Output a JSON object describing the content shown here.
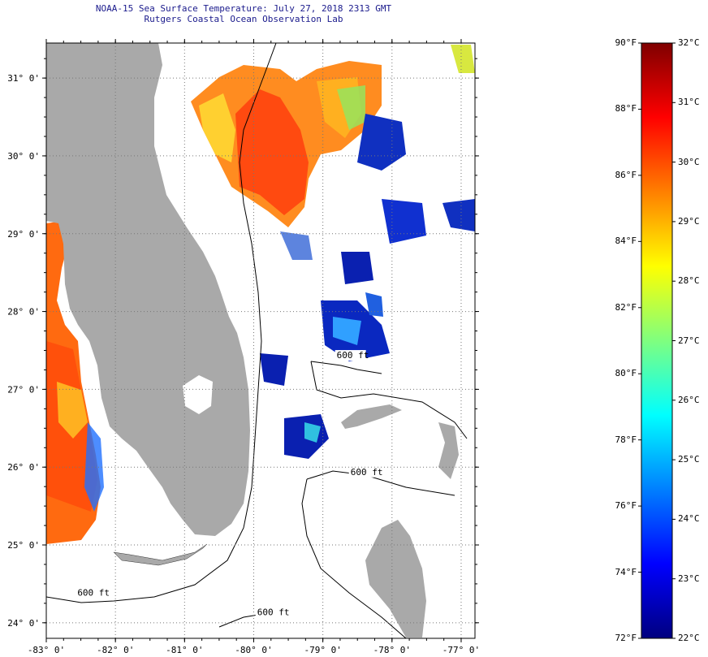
{
  "header": {
    "title": "NOAA-15 Sea Surface Temperature:  July 27, 2018 2313 GMT",
    "subtitle": "Rutgers Coastal Ocean Observation Lab"
  },
  "map": {
    "lon_range": [
      -83,
      -76.8
    ],
    "lat_range": [
      23.8,
      31.45
    ],
    "lat_ticks": [
      {
        "value": 31,
        "label": "31° 0'"
      },
      {
        "value": 30,
        "label": "30° 0'"
      },
      {
        "value": 29,
        "label": "29° 0'"
      },
      {
        "value": 28,
        "label": "28° 0'"
      },
      {
        "value": 27,
        "label": "27° 0'"
      },
      {
        "value": 26,
        "label": "26° 0'"
      },
      {
        "value": 25,
        "label": "25° 0'"
      },
      {
        "value": 24,
        "label": "24° 0'"
      }
    ],
    "lon_ticks": [
      {
        "value": -83,
        "label": "-83° 0'"
      },
      {
        "value": -82,
        "label": "-82° 0'"
      },
      {
        "value": -81,
        "label": "-81° 0'"
      },
      {
        "value": -80,
        "label": "-80° 0'"
      },
      {
        "value": -79,
        "label": "-79° 0'"
      },
      {
        "value": -78,
        "label": "-78° 0'"
      },
      {
        "value": -77,
        "label": "-77° 0'"
      }
    ],
    "contour_labels": [
      {
        "text": "600 ft",
        "lon": -78.8,
        "lat": 27.4
      },
      {
        "text": "600 ft",
        "lon": -78.6,
        "lat": 25.9
      },
      {
        "text": "600 ft",
        "lon": -82.55,
        "lat": 24.35
      },
      {
        "text": "600 ft",
        "lon": -79.95,
        "lat": 24.1
      }
    ],
    "colors": {
      "land": "#a9a9a9",
      "water_nodata": "#ffffff",
      "grid": "#777777"
    }
  },
  "colorbar": {
    "fahrenheit": [
      {
        "value": 90,
        "label": "90°F"
      },
      {
        "value": 88,
        "label": "88°F"
      },
      {
        "value": 86,
        "label": "86°F"
      },
      {
        "value": 84,
        "label": "84°F"
      },
      {
        "value": 82,
        "label": "82°F"
      },
      {
        "value": 80,
        "label": "80°F"
      },
      {
        "value": 78,
        "label": "78°F"
      },
      {
        "value": 76,
        "label": "76°F"
      },
      {
        "value": 74,
        "label": "74°F"
      },
      {
        "value": 72,
        "label": "72°F"
      }
    ],
    "celsius": [
      {
        "value": 32,
        "label": "32°C"
      },
      {
        "value": 31,
        "label": "31°C"
      },
      {
        "value": 30,
        "label": "30°C"
      },
      {
        "value": 29,
        "label": "29°C"
      },
      {
        "value": 28,
        "label": "28°C"
      },
      {
        "value": 27,
        "label": "27°C"
      },
      {
        "value": 26,
        "label": "26°C"
      },
      {
        "value": 25,
        "label": "25°C"
      },
      {
        "value": 24,
        "label": "24°C"
      },
      {
        "value": 23,
        "label": "23°C"
      },
      {
        "value": 22,
        "label": "22°C"
      }
    ],
    "gradient": [
      "#00007f",
      "#0000ff",
      "#007fff",
      "#00ffff",
      "#7fff7f",
      "#ffff00",
      "#ff7f00",
      "#ff0000",
      "#7f0000"
    ]
  }
}
